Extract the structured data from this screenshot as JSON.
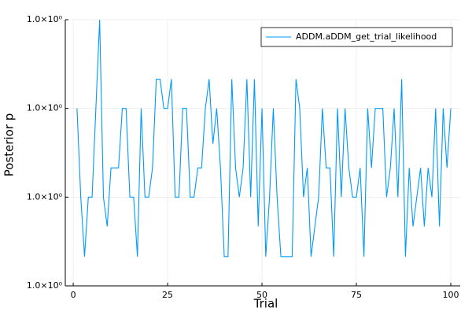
{
  "chart_data": {
    "type": "line",
    "xlabel": "Trial",
    "ylabel": "Posterior p",
    "x": [
      1,
      2,
      3,
      4,
      5,
      6,
      7,
      8,
      9,
      10,
      11,
      12,
      13,
      14,
      15,
      16,
      17,
      18,
      19,
      20,
      21,
      22,
      23,
      24,
      25,
      26,
      27,
      28,
      29,
      30,
      31,
      32,
      33,
      34,
      35,
      36,
      37,
      38,
      39,
      40,
      41,
      42,
      43,
      44,
      45,
      46,
      47,
      48,
      49,
      50,
      51,
      52,
      53,
      54,
      55,
      56,
      57,
      58,
      59,
      60,
      61,
      62,
      63,
      64,
      65,
      66,
      67,
      68,
      69,
      70,
      71,
      72,
      73,
      74,
      75,
      76,
      77,
      78,
      79,
      80,
      81,
      82,
      83,
      84,
      85,
      86,
      87,
      88,
      89,
      90,
      91,
      92,
      93,
      94,
      95,
      96,
      97,
      98,
      99,
      100
    ],
    "series": [
      {
        "name": "ADDM.aDDM_get_trial_likelihood",
        "color": "#009af9",
        "values": [
          0.99999,
          0.99998,
          0.9999733,
          0.99998,
          0.99998,
          0.99999,
          1.0,
          0.99998,
          0.9999767,
          0.9999833,
          0.9999833,
          0.9999833,
          0.99999,
          0.99999,
          0.99998,
          0.99998,
          0.9999733,
          0.99999,
          0.99998,
          0.99998,
          0.9999833,
          0.9999933,
          0.9999933,
          0.99999,
          0.99999,
          0.9999933,
          0.99998,
          0.99998,
          0.99999,
          0.99999,
          0.99998,
          0.99998,
          0.9999833,
          0.9999833,
          0.99999,
          0.9999933,
          0.999986,
          0.99999,
          0.9999833,
          0.9999733,
          0.9999733,
          0.9999933,
          0.9999833,
          0.99998,
          0.9999833,
          0.9999933,
          0.99998,
          0.9999933,
          0.9999767,
          0.99999,
          0.9999733,
          0.99998,
          0.99999,
          0.99998,
          0.9999733,
          0.9999733,
          0.9999733,
          0.9999733,
          0.9999933,
          0.99999,
          0.99998,
          0.9999833,
          0.9999733,
          0.9999767,
          0.99998,
          0.99999,
          0.9999833,
          0.9999833,
          0.9999733,
          0.99999,
          0.99998,
          0.99999,
          0.9999833,
          0.99998,
          0.99998,
          0.9999833,
          0.9999733,
          0.99999,
          0.9999833,
          0.99999,
          0.99999,
          0.99999,
          0.99998,
          0.9999833,
          0.99999,
          0.99998,
          0.9999933,
          0.9999733,
          0.9999833,
          0.9999767,
          0.99998,
          0.9999833,
          0.9999767,
          0.9999833,
          0.99998,
          0.99999,
          0.9999767,
          0.99999,
          0.9999833,
          0.99999
        ]
      }
    ],
    "xlim": [
      -2.1,
      102.5
    ],
    "xticks": [
      0,
      25,
      50,
      75,
      100
    ],
    "ylim": [
      0.99997,
      1.0
    ],
    "yticks": [
      {
        "value": 0.99997,
        "label": "1.0×10⁰"
      },
      {
        "value": 0.99998,
        "label": "1.0×10⁰"
      },
      {
        "value": 0.99999,
        "label": "1.0×10⁰"
      },
      {
        "value": 1.0,
        "label": "1.0×10⁰"
      }
    ],
    "grid": true,
    "legend": "top-right"
  }
}
